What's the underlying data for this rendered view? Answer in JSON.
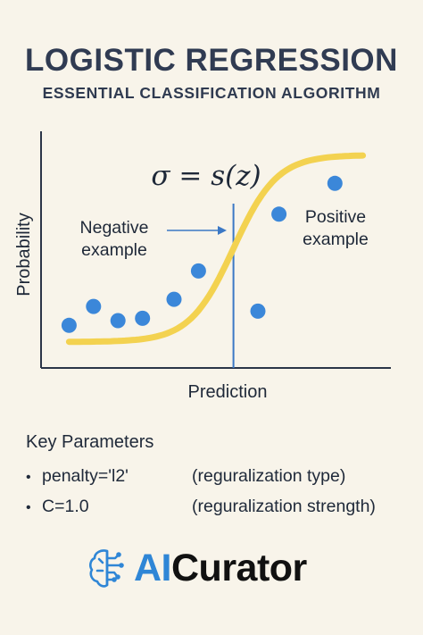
{
  "title": "LOGISTIC REGRESSION",
  "subtitle": "ESSENTIAL CLASSIFICATION ALGORITHM",
  "chart_data": {
    "type": "scatter",
    "formula": "σ = s(z)",
    "xlabel": "Prediction",
    "ylabel": "Probability",
    "xlim": [
      0,
      100
    ],
    "ylim": [
      0,
      100
    ],
    "curve": {
      "type": "sigmoid",
      "color": "#f3d250"
    },
    "decision_boundary_x": 55,
    "points": [
      {
        "x": 8,
        "y": 18
      },
      {
        "x": 15,
        "y": 26
      },
      {
        "x": 22,
        "y": 20
      },
      {
        "x": 29,
        "y": 21
      },
      {
        "x": 38,
        "y": 29
      },
      {
        "x": 45,
        "y": 41
      },
      {
        "x": 62,
        "y": 24
      },
      {
        "x": 68,
        "y": 65
      },
      {
        "x": 84,
        "y": 78
      }
    ],
    "point_color": "#3b87d9",
    "annotations": {
      "negative": [
        "Negative",
        "example"
      ],
      "positive": [
        "Positive",
        "example"
      ]
    }
  },
  "parameters": {
    "heading": "Key Parameters",
    "items": [
      {
        "name": "penalty='l2'",
        "description": "(reguralization type)"
      },
      {
        "name": "C=1.0",
        "description": "(reguralization strength)"
      }
    ]
  },
  "logo": {
    "icon": "brain-circuit-icon",
    "text_accent": "AI",
    "text_rest": "Curator",
    "accent_color": "#2f86d6"
  }
}
